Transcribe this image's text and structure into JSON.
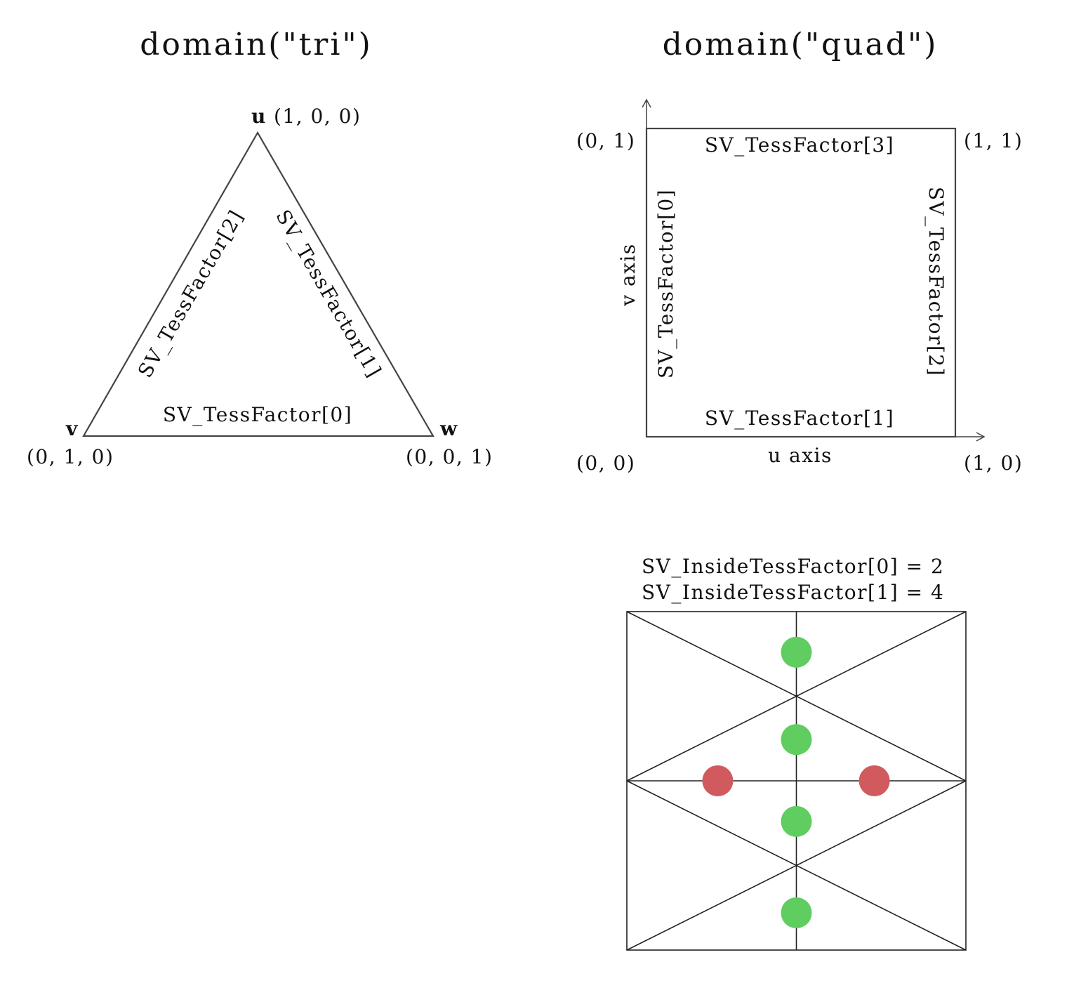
{
  "tri": {
    "title": "domain(\"tri\")",
    "vertex_u": "u",
    "coord_u": "(1, 0, 0)",
    "vertex_v": "v",
    "coord_v": "(0, 1, 0)",
    "vertex_w": "w",
    "coord_w": "(0, 0, 1)",
    "edge_0": "SV_TessFactor[0]",
    "edge_1": "SV_TessFactor[1]",
    "edge_2": "SV_TessFactor[2]"
  },
  "quad": {
    "title": "domain(\"quad\")",
    "coord_00": "(0, 0)",
    "coord_01": "(0, 1)",
    "coord_10": "(1, 0)",
    "coord_11": "(1, 1)",
    "u_axis": "u axis",
    "v_axis": "v axis",
    "edge_0": "SV_TessFactor[0]",
    "edge_1": "SV_TessFactor[1]",
    "edge_2": "SV_TessFactor[2]",
    "edge_3": "SV_TessFactor[3]"
  },
  "inside": {
    "factor_0_label": "SV_InsideTessFactor[0] = 2",
    "factor_1_label": "SV_InsideTessFactor[1] = 4",
    "factor_0_value": 2,
    "factor_1_value": 4,
    "color_0": "#d05a5e",
    "color_1": "#5fcd5f",
    "label_color_0": "#b01818",
    "label_color_1": "#22b022"
  }
}
